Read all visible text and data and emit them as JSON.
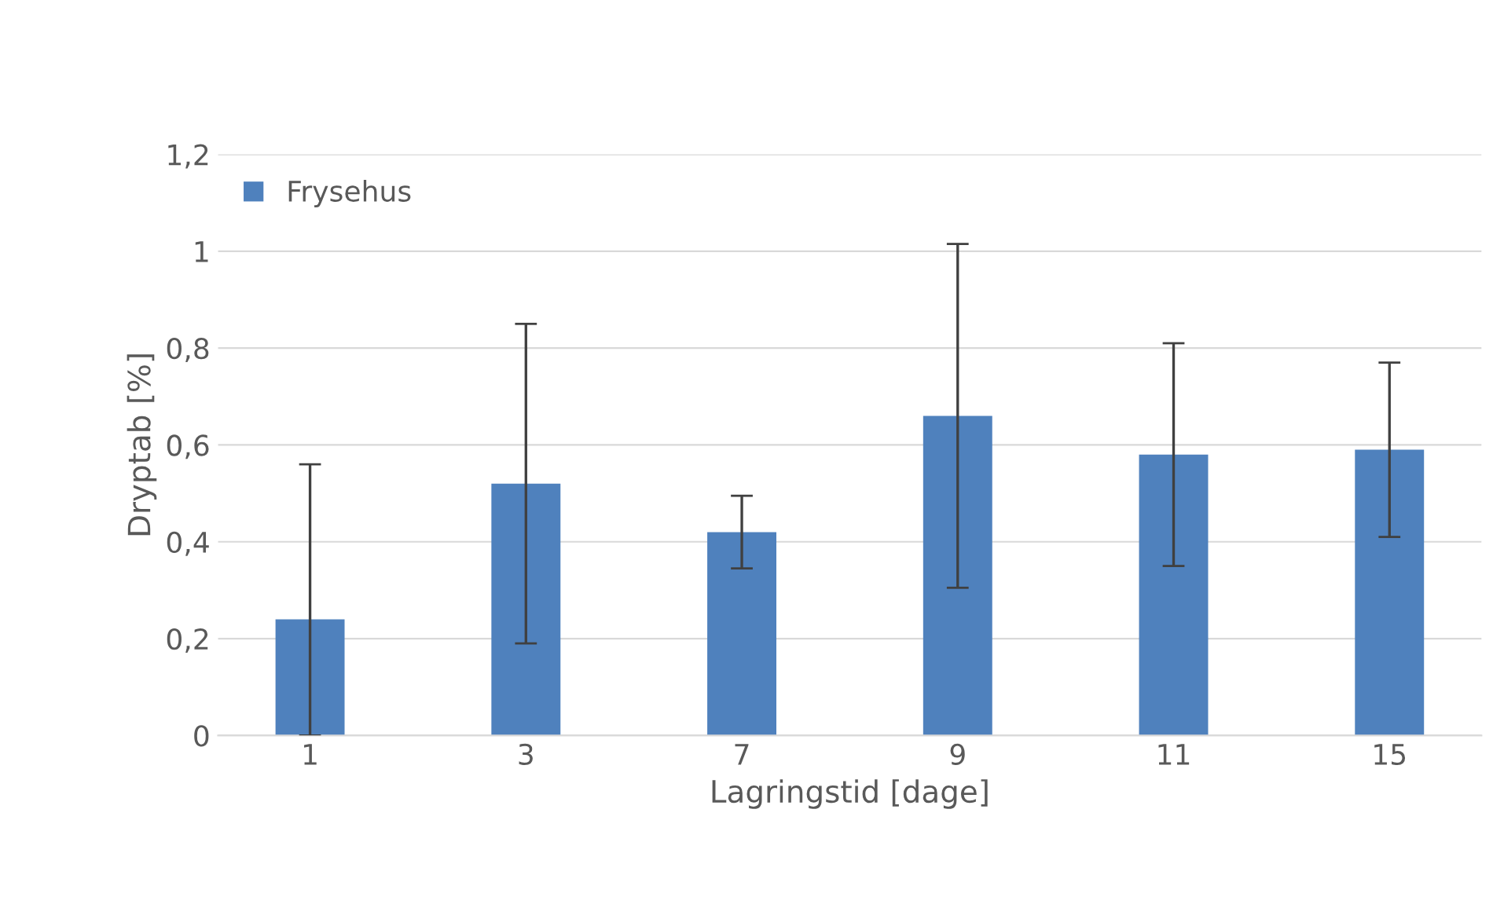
{
  "chart_data": {
    "type": "bar",
    "xlabel": "Lagringstid [dage]",
    "ylabel": "Dryptab [%]",
    "categories": [
      "1",
      "3",
      "7",
      "9",
      "11",
      "15"
    ],
    "series": [
      {
        "name": "Frysehus",
        "color": "#4f81bd",
        "values": [
          0.24,
          0.52,
          0.42,
          0.66,
          0.58,
          0.59
        ],
        "errors": [
          [
            0,
            0.56
          ],
          0.33,
          0.075,
          0.355,
          0.23,
          0.18
        ]
      }
    ],
    "ylim": [
      0,
      1.2
    ],
    "yticks": [
      0,
      {
        "value": 0.2,
        "label": "0,2"
      },
      {
        "value": 0.4,
        "label": "0,4"
      },
      {
        "value": 0.6,
        "label": "0,6"
      },
      {
        "value": 0.8,
        "label": "0,8"
      },
      1,
      {
        "value": 1.2,
        "label": "1,2"
      }
    ],
    "grid": "y",
    "legend": "top left"
  }
}
